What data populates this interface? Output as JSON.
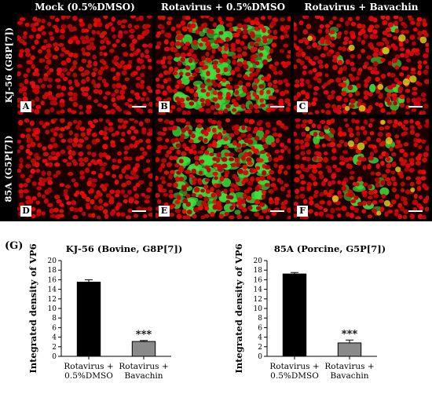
{
  "figure": {
    "columns": [
      "Mock (0.5%DMSO)",
      "Rotavirus + 0.5%DMSO",
      "Rotavirus + Bavachin"
    ],
    "rows": [
      "KJ-56 (G8P[7])",
      "85A (G5P[7])"
    ],
    "panels": [
      {
        "letter": "A",
        "green_level": 0.0
      },
      {
        "letter": "B",
        "green_level": 0.85
      },
      {
        "letter": "C",
        "green_level": 0.15
      },
      {
        "letter": "D",
        "green_level": 0.0
      },
      {
        "letter": "E",
        "green_level": 0.9
      },
      {
        "letter": "F",
        "green_level": 0.15
      }
    ],
    "colors": {
      "nuclei": "#e01818",
      "infected": "#3ce03c",
      "background": "#1a0000"
    },
    "subfigure_label": "(G)"
  },
  "chart_data": [
    {
      "type": "bar",
      "title": "KJ-56 (Bovine, G8P[7])",
      "ylabel": "Integrated density of VP6",
      "categories": [
        "Rotavirus + 0.5%DMSO",
        "Rotavirus + Bavachin"
      ],
      "category_lines": [
        [
          "Rotavirus +",
          "0.5%DMSO"
        ],
        [
          "Rotavirus +",
          "Bavachin"
        ]
      ],
      "values": [
        15.5,
        3.1
      ],
      "errors": [
        0.5,
        0.2
      ],
      "bar_colors": [
        "#000000",
        "#8a8a8a"
      ],
      "annotations": [
        "",
        "***"
      ],
      "ylim": [
        0,
        20
      ],
      "yticks": [
        0,
        2,
        4,
        6,
        8,
        10,
        12,
        14,
        16,
        18,
        20
      ]
    },
    {
      "type": "bar",
      "title": "85A (Porcine, G5P[7])",
      "ylabel": "Integrated density of VP6",
      "categories": [
        "Rotavirus + 0.5%DMSO",
        "Rotavirus + Bavachin"
      ],
      "category_lines": [
        [
          "Rotavirus +",
          "0.5%DMSO"
        ],
        [
          "Rotavirus +",
          "Bavachin"
        ]
      ],
      "values": [
        17.2,
        2.8
      ],
      "errors": [
        0.3,
        0.6
      ],
      "bar_colors": [
        "#000000",
        "#8a8a8a"
      ],
      "annotations": [
        "",
        "***"
      ],
      "ylim": [
        0,
        20
      ],
      "yticks": [
        0,
        2,
        4,
        6,
        8,
        10,
        12,
        14,
        16,
        18,
        20
      ]
    }
  ]
}
